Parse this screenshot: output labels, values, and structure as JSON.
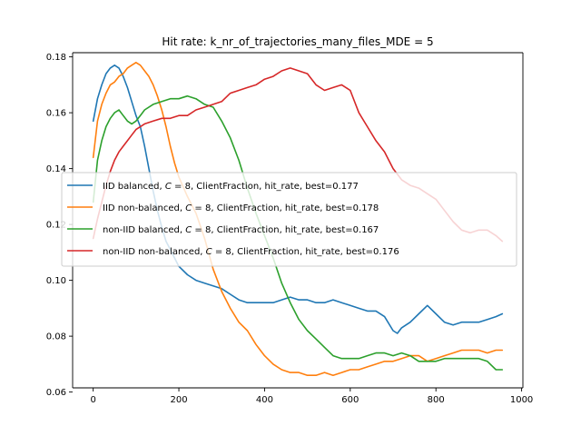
{
  "chart_data": {
    "type": "line",
    "title": "Hit rate: k_nr_of_trajectories_many_files_MDE = 5",
    "xlabel": "",
    "ylabel": "",
    "xlim": [
      -48,
      1003
    ],
    "ylim": [
      0.0615,
      0.1815
    ],
    "xticks": [
      0,
      200,
      400,
      600,
      800,
      1000
    ],
    "yticks": [
      0.06,
      0.08,
      0.1,
      0.12,
      0.14,
      0.16,
      0.18
    ],
    "ytick_labels": [
      "0.06",
      "0.08",
      "0.10",
      "0.12",
      "0.14",
      "0.16",
      "0.18"
    ],
    "grid": false,
    "legend_position": "center-right",
    "series": [
      {
        "name": "IID balanced, C = 8, ClientFraction, hit_rate, best=0.177",
        "label_parts": [
          "IID balanced, ",
          "C",
          " = 8, ClientFraction, hit_rate, best=0.177"
        ],
        "color": "#1f77b4",
        "x": [
          0,
          10,
          20,
          30,
          40,
          50,
          60,
          70,
          80,
          90,
          100,
          110,
          120,
          130,
          140,
          150,
          160,
          170,
          180,
          190,
          200,
          220,
          240,
          260,
          280,
          300,
          320,
          340,
          360,
          380,
          400,
          420,
          440,
          460,
          480,
          500,
          520,
          540,
          560,
          580,
          600,
          620,
          640,
          660,
          680,
          700,
          710,
          720,
          740,
          760,
          780,
          800,
          820,
          840,
          860,
          880,
          900,
          920,
          940,
          955
        ],
        "y": [
          0.157,
          0.165,
          0.17,
          0.174,
          0.176,
          0.177,
          0.176,
          0.173,
          0.169,
          0.164,
          0.159,
          0.155,
          0.148,
          0.14,
          0.132,
          0.125,
          0.119,
          0.114,
          0.111,
          0.108,
          0.105,
          0.102,
          0.1,
          0.099,
          0.098,
          0.097,
          0.095,
          0.093,
          0.092,
          0.092,
          0.092,
          0.092,
          0.093,
          0.094,
          0.093,
          0.093,
          0.092,
          0.092,
          0.093,
          0.092,
          0.091,
          0.09,
          0.089,
          0.089,
          0.087,
          0.082,
          0.081,
          0.083,
          0.085,
          0.088,
          0.091,
          0.088,
          0.085,
          0.084,
          0.085,
          0.085,
          0.085,
          0.086,
          0.087,
          0.088
        ]
      },
      {
        "name": "IID non-balanced, C = 8, ClientFraction, hit_rate, best=0.178",
        "label_parts": [
          "IID non-balanced, ",
          "C",
          " = 8, ClientFraction, hit_rate, best=0.178"
        ],
        "color": "#ff7f0e",
        "x": [
          0,
          10,
          20,
          30,
          40,
          50,
          60,
          70,
          80,
          90,
          100,
          110,
          120,
          130,
          140,
          150,
          160,
          170,
          180,
          190,
          200,
          220,
          240,
          260,
          280,
          300,
          320,
          340,
          360,
          380,
          400,
          420,
          440,
          460,
          480,
          500,
          520,
          540,
          560,
          580,
          600,
          620,
          640,
          660,
          680,
          700,
          720,
          740,
          760,
          780,
          800,
          820,
          840,
          860,
          880,
          900,
          920,
          940,
          955
        ],
        "y": [
          0.144,
          0.157,
          0.163,
          0.167,
          0.17,
          0.171,
          0.173,
          0.174,
          0.176,
          0.177,
          0.178,
          0.177,
          0.175,
          0.173,
          0.17,
          0.166,
          0.161,
          0.155,
          0.148,
          0.142,
          0.137,
          0.13,
          0.124,
          0.115,
          0.104,
          0.096,
          0.09,
          0.085,
          0.082,
          0.077,
          0.073,
          0.07,
          0.068,
          0.067,
          0.067,
          0.066,
          0.066,
          0.067,
          0.066,
          0.067,
          0.068,
          0.068,
          0.069,
          0.07,
          0.071,
          0.071,
          0.072,
          0.073,
          0.073,
          0.071,
          0.072,
          0.073,
          0.074,
          0.075,
          0.075,
          0.075,
          0.074,
          0.075,
          0.075
        ]
      },
      {
        "name": "non-IID balanced, C = 8, ClientFraction, hit_rate, best=0.167",
        "label_parts": [
          "non-IID balanced, ",
          "C",
          " = 8, ClientFraction, hit_rate, best=0.167"
        ],
        "color": "#2ca02c",
        "x": [
          0,
          10,
          20,
          30,
          40,
          50,
          60,
          70,
          80,
          90,
          100,
          110,
          120,
          140,
          160,
          180,
          200,
          220,
          240,
          260,
          280,
          300,
          320,
          340,
          360,
          380,
          400,
          420,
          440,
          460,
          480,
          500,
          520,
          540,
          560,
          580,
          600,
          620,
          640,
          660,
          680,
          700,
          720,
          740,
          760,
          780,
          800,
          820,
          840,
          860,
          880,
          900,
          920,
          940,
          955
        ],
        "y": [
          0.128,
          0.143,
          0.15,
          0.155,
          0.158,
          0.16,
          0.161,
          0.159,
          0.157,
          0.156,
          0.157,
          0.159,
          0.161,
          0.163,
          0.164,
          0.165,
          0.165,
          0.166,
          0.165,
          0.163,
          0.162,
          0.157,
          0.151,
          0.143,
          0.133,
          0.124,
          0.116,
          0.108,
          0.099,
          0.092,
          0.086,
          0.082,
          0.079,
          0.076,
          0.073,
          0.072,
          0.072,
          0.072,
          0.073,
          0.074,
          0.074,
          0.073,
          0.074,
          0.073,
          0.071,
          0.071,
          0.071,
          0.072,
          0.072,
          0.072,
          0.072,
          0.072,
          0.071,
          0.068,
          0.068
        ]
      },
      {
        "name": "non-IID non-balanced, C = 8, ClientFraction, hit_rate, best=0.176",
        "label_parts": [
          "non-IID non-balanced, ",
          "C",
          " = 8, ClientFraction, hit_rate, best=0.176"
        ],
        "color": "#d62728",
        "x": [
          0,
          10,
          20,
          30,
          40,
          50,
          60,
          70,
          80,
          90,
          100,
          120,
          140,
          160,
          180,
          200,
          220,
          240,
          260,
          280,
          300,
          320,
          340,
          360,
          380,
          400,
          420,
          440,
          460,
          480,
          500,
          520,
          540,
          560,
          580,
          600,
          620,
          640,
          660,
          680,
          700,
          720,
          740,
          760,
          780,
          800,
          820,
          840,
          860,
          880,
          900,
          920,
          940,
          955
        ],
        "y": [
          0.115,
          0.122,
          0.128,
          0.134,
          0.139,
          0.143,
          0.146,
          0.148,
          0.15,
          0.152,
          0.154,
          0.156,
          0.157,
          0.158,
          0.158,
          0.159,
          0.159,
          0.161,
          0.162,
          0.163,
          0.164,
          0.167,
          0.168,
          0.169,
          0.17,
          0.172,
          0.173,
          0.175,
          0.176,
          0.175,
          0.174,
          0.17,
          0.168,
          0.169,
          0.17,
          0.168,
          0.16,
          0.155,
          0.15,
          0.146,
          0.14,
          0.136,
          0.134,
          0.133,
          0.131,
          0.129,
          0.125,
          0.121,
          0.118,
          0.117,
          0.118,
          0.118,
          0.116,
          0.114
        ]
      }
    ]
  }
}
